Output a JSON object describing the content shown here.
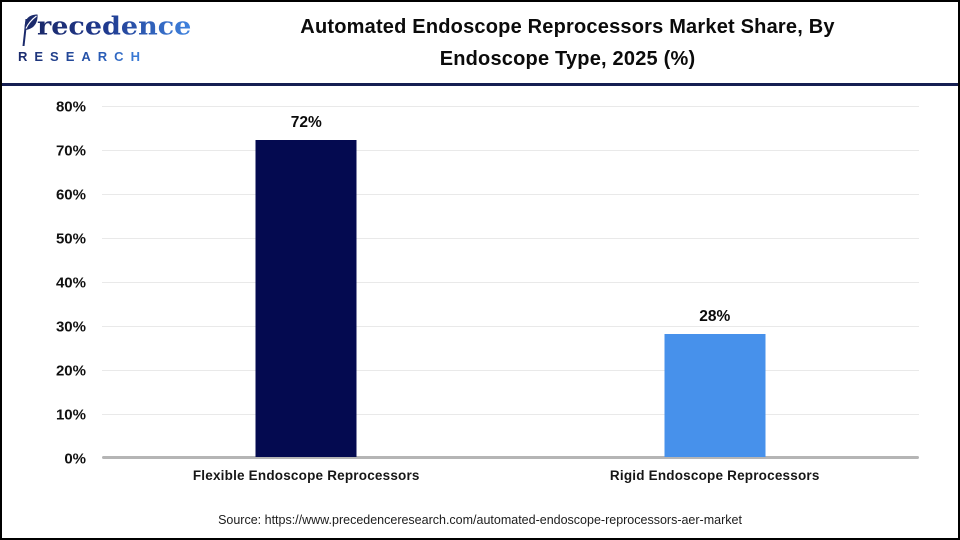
{
  "header": {
    "logo": {
      "brand_top": "recedence",
      "brand_bottom": "RESEARCH"
    },
    "title_line1": "Automated Endoscope Reprocessors Market Share, By",
    "title_line2": "Endoscope Type, 2025 (%)"
  },
  "chart_data": {
    "type": "bar",
    "title": "Automated Endoscope Reprocessors Market Share, By Endoscope Type, 2025 (%)",
    "categories": [
      "Flexible Endoscope Reprocessors",
      "Rigid Endoscope Reprocessors"
    ],
    "values": [
      72,
      28
    ],
    "value_labels": [
      "72%",
      "28%"
    ],
    "bar_colors": [
      "#040a50",
      "#4791eb"
    ],
    "xlabel": "",
    "ylabel": "",
    "ylim": [
      0,
      80
    ],
    "ytick_step": 10,
    "ytick_labels": [
      "0%",
      "10%",
      "20%",
      "30%",
      "40%",
      "50%",
      "60%",
      "70%",
      "80%"
    ],
    "grid": true,
    "legend": false
  },
  "footer": {
    "source": "Source: https://www.precedenceresearch.com/automated-endoscope-reprocessors-aer-market"
  },
  "colors": {
    "bar_flexible": "#040a50",
    "bar_rigid": "#4791eb",
    "header_rule": "#161f52",
    "gridline": "#e9e9e9",
    "axis_line": "#b5b5b5",
    "logo_navy": "#1b2a6b",
    "logo_blue": "#3f83df"
  }
}
